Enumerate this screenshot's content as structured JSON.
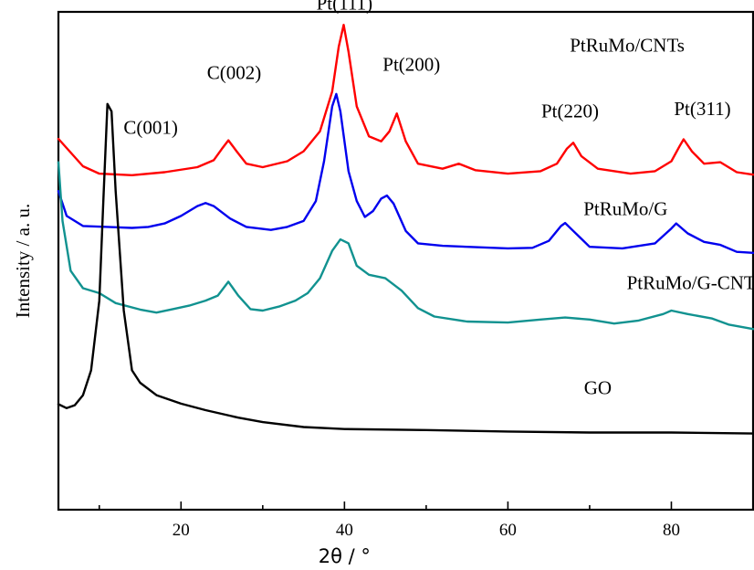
{
  "chart_data": {
    "type": "line",
    "title": "",
    "xlabel": "2θ / °",
    "ylabel": "Intensity / a. u.",
    "xlim": [
      5,
      90
    ],
    "ylim": [
      0,
      100
    ],
    "xticks": [
      20,
      40,
      60,
      80
    ],
    "yticks_labeled": false,
    "grid": false,
    "series": [
      {
        "name": "PtRuMo/CNTs",
        "color": "#ff0000",
        "points": [
          [
            5,
            74.5
          ],
          [
            8,
            69
          ],
          [
            10,
            67.5
          ],
          [
            14,
            67.2
          ],
          [
            18,
            67.8
          ],
          [
            22,
            68.8
          ],
          [
            24,
            70.2
          ],
          [
            25,
            72.5
          ],
          [
            25.8,
            74.2
          ],
          [
            26.8,
            72
          ],
          [
            28,
            69.5
          ],
          [
            30,
            68.8
          ],
          [
            33,
            70
          ],
          [
            35,
            72
          ],
          [
            37,
            76
          ],
          [
            38.5,
            84
          ],
          [
            39.3,
            93
          ],
          [
            39.9,
            97.4
          ],
          [
            40.5,
            92
          ],
          [
            41.5,
            81
          ],
          [
            43,
            75
          ],
          [
            44.5,
            74
          ],
          [
            45.5,
            76
          ],
          [
            46.4,
            79.6
          ],
          [
            47.5,
            74
          ],
          [
            49,
            69.5
          ],
          [
            52,
            68.5
          ],
          [
            54,
            69.5
          ],
          [
            56,
            68.2
          ],
          [
            60,
            67.5
          ],
          [
            64,
            68
          ],
          [
            66,
            69.5
          ],
          [
            67.2,
            72.5
          ],
          [
            68,
            73.7
          ],
          [
            69,
            71
          ],
          [
            71,
            68.5
          ],
          [
            75,
            67.5
          ],
          [
            78,
            68
          ],
          [
            80,
            70
          ],
          [
            81,
            73
          ],
          [
            81.5,
            74.4
          ],
          [
            82.5,
            72
          ],
          [
            84,
            69.5
          ],
          [
            86,
            69.8
          ],
          [
            88,
            67.8
          ],
          [
            90,
            67.3
          ]
        ]
      },
      {
        "name": "PtRuMo/G",
        "color": "#0000ee",
        "points": [
          [
            5,
            64
          ],
          [
            6,
            59
          ],
          [
            8,
            57
          ],
          [
            11,
            56.8
          ],
          [
            14,
            56.6
          ],
          [
            16,
            56.8
          ],
          [
            18,
            57.5
          ],
          [
            20,
            59
          ],
          [
            22,
            61
          ],
          [
            23,
            61.6
          ],
          [
            24,
            61
          ],
          [
            26,
            58.5
          ],
          [
            28,
            56.8
          ],
          [
            31,
            56.2
          ],
          [
            33,
            56.8
          ],
          [
            35,
            58
          ],
          [
            36.5,
            62
          ],
          [
            37.5,
            70
          ],
          [
            38.5,
            81
          ],
          [
            39,
            83.5
          ],
          [
            39.5,
            80
          ],
          [
            40.5,
            68
          ],
          [
            41.5,
            62
          ],
          [
            42.5,
            58.8
          ],
          [
            43.5,
            60
          ],
          [
            44.5,
            62.5
          ],
          [
            45.2,
            63.1
          ],
          [
            46,
            61.5
          ],
          [
            47.5,
            56
          ],
          [
            49,
            53.5
          ],
          [
            52,
            53
          ],
          [
            55,
            52.8
          ],
          [
            60,
            52.5
          ],
          [
            63,
            52.6
          ],
          [
            65,
            54
          ],
          [
            66.5,
            57
          ],
          [
            67,
            57.6
          ],
          [
            68,
            56
          ],
          [
            70,
            52.8
          ],
          [
            74,
            52.5
          ],
          [
            78,
            53.5
          ],
          [
            80,
            56.5
          ],
          [
            80.6,
            57.5
          ],
          [
            82,
            55.5
          ],
          [
            84,
            53.8
          ],
          [
            86,
            53.2
          ],
          [
            88,
            51.8
          ],
          [
            90,
            51.6
          ]
        ]
      },
      {
        "name": "PtRuMo/G-CNTs",
        "color": "#119290",
        "points": [
          [
            5,
            69.8
          ],
          [
            5.5,
            58
          ],
          [
            6.5,
            48
          ],
          [
            8,
            44.5
          ],
          [
            10,
            43.5
          ],
          [
            12,
            41.5
          ],
          [
            15,
            40.2
          ],
          [
            17,
            39.6
          ],
          [
            19,
            40.3
          ],
          [
            21,
            41
          ],
          [
            23,
            42
          ],
          [
            24.5,
            43
          ],
          [
            25.8,
            45.8
          ],
          [
            27,
            43
          ],
          [
            28.5,
            40.3
          ],
          [
            30,
            40
          ],
          [
            32,
            40.8
          ],
          [
            34,
            42
          ],
          [
            35.5,
            43.5
          ],
          [
            37,
            46.5
          ],
          [
            38.5,
            52
          ],
          [
            39.5,
            54.3
          ],
          [
            40.5,
            53.5
          ],
          [
            41.5,
            49
          ],
          [
            43,
            47.2
          ],
          [
            45,
            46.5
          ],
          [
            47,
            44
          ],
          [
            49,
            40.5
          ],
          [
            51,
            38.8
          ],
          [
            55,
            37.8
          ],
          [
            60,
            37.6
          ],
          [
            64,
            38.2
          ],
          [
            67,
            38.6
          ],
          [
            70,
            38.2
          ],
          [
            73,
            37.4
          ],
          [
            76,
            38
          ],
          [
            79,
            39.3
          ],
          [
            80,
            40
          ],
          [
            82,
            39.3
          ],
          [
            85,
            38.4
          ],
          [
            87,
            37.2
          ],
          [
            90,
            36.3
          ]
        ]
      },
      {
        "name": "GO",
        "color": "#000000",
        "points": [
          [
            5,
            21.2
          ],
          [
            6,
            20.4
          ],
          [
            7,
            21
          ],
          [
            8,
            23
          ],
          [
            9,
            28
          ],
          [
            10,
            42
          ],
          [
            10.5,
            62
          ],
          [
            11,
            81.5
          ],
          [
            11.5,
            80
          ],
          [
            12,
            64
          ],
          [
            13,
            40
          ],
          [
            14,
            28
          ],
          [
            15,
            25.5
          ],
          [
            17,
            23
          ],
          [
            20,
            21.3
          ],
          [
            23,
            20
          ],
          [
            27,
            18.5
          ],
          [
            30,
            17.6
          ],
          [
            35,
            16.6
          ],
          [
            40,
            16.2
          ],
          [
            50,
            16
          ],
          [
            60,
            15.7
          ],
          [
            70,
            15.5
          ],
          [
            80,
            15.5
          ],
          [
            90,
            15.3
          ]
        ]
      }
    ],
    "annotations": [
      {
        "text": "Pt(111)",
        "x": 40,
        "y": 100.5
      },
      {
        "text": "C(002)",
        "x": 26.5,
        "y": 86.5
      },
      {
        "text": "Pt(200)",
        "x": 48.2,
        "y": 88.2
      },
      {
        "text": "PtRuMo/CNTs",
        "x": 74.6,
        "y": 92
      },
      {
        "text": "Pt(220)",
        "x": 67.6,
        "y": 78.8
      },
      {
        "text": "Pt(311)",
        "x": 83.8,
        "y": 79.3
      },
      {
        "text": "C(001)",
        "x": 16.3,
        "y": 75.5
      },
      {
        "text": "PtRuMo/G",
        "x": 74.4,
        "y": 59.2
      },
      {
        "text": "PtRuMo/G-CNTs",
        "x": 82.8,
        "y": 44.3
      },
      {
        "text": "GO",
        "x": 71,
        "y": 23.2
      }
    ]
  }
}
